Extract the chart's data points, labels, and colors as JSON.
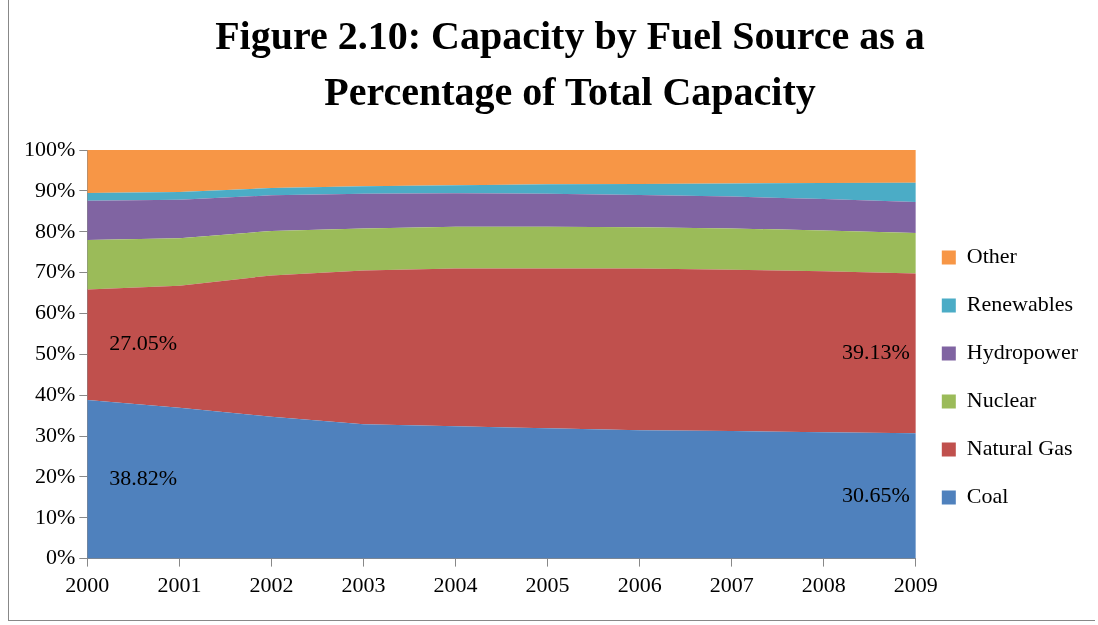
{
  "chart_data": {
    "type": "area",
    "title": "Figure 2.10: Capacity by Fuel Source as a Percentage of Total Capacity",
    "categories": [
      "2000",
      "2001",
      "2002",
      "2003",
      "2004",
      "2005",
      "2006",
      "2007",
      "2008",
      "2009"
    ],
    "stacked": true,
    "series": [
      {
        "name": "Coal",
        "color": "#4f81bd",
        "values": [
          38.82,
          36.9,
          34.7,
          32.9,
          32.4,
          31.9,
          31.4,
          31.2,
          30.9,
          30.65
        ],
        "value_labels": [
          "38.82%",
          null,
          null,
          null,
          null,
          null,
          null,
          null,
          null,
          "30.65%"
        ]
      },
      {
        "name": "Natural Gas",
        "color": "#c0504d",
        "values": [
          27.05,
          29.9,
          34.6,
          37.6,
          38.6,
          39.1,
          39.6,
          39.5,
          39.4,
          39.13
        ],
        "value_labels": [
          "27.05%",
          null,
          null,
          null,
          null,
          null,
          null,
          null,
          null,
          "39.13%"
        ]
      },
      {
        "name": "Nuclear",
        "color": "#9bbb59",
        "values": [
          12.1,
          11.6,
          10.9,
          10.3,
          10.2,
          10.2,
          10.1,
          10.1,
          10.0,
          9.9
        ]
      },
      {
        "name": "Hydropower",
        "color": "#8064a2",
        "values": [
          9.6,
          9.4,
          8.7,
          8.5,
          8.2,
          8.1,
          7.9,
          7.8,
          7.7,
          7.6
        ]
      },
      {
        "name": "Renewables",
        "color": "#4bacc6",
        "values": [
          1.9,
          1.9,
          1.8,
          1.8,
          2.0,
          2.3,
          2.7,
          3.2,
          3.9,
          4.7
        ]
      },
      {
        "name": "Other",
        "color": "#f79646",
        "values": [
          10.5,
          10.3,
          9.3,
          8.9,
          8.6,
          8.4,
          8.3,
          8.2,
          8.1,
          8.0
        ]
      }
    ],
    "ylim": [
      0,
      100
    ],
    "yticks": [
      {
        "value": 0,
        "label": "0%"
      },
      {
        "value": 10,
        "label": "10%"
      },
      {
        "value": 20,
        "label": "20%"
      },
      {
        "value": 30,
        "label": "30%"
      },
      {
        "value": 40,
        "label": "40%"
      },
      {
        "value": 50,
        "label": "50%"
      },
      {
        "value": 60,
        "label": "60%"
      },
      {
        "value": 70,
        "label": "70%"
      },
      {
        "value": 80,
        "label": "80%"
      },
      {
        "value": 90,
        "label": "90%"
      },
      {
        "value": 100,
        "label": "100%"
      }
    ],
    "grid": false,
    "legend": "right"
  }
}
